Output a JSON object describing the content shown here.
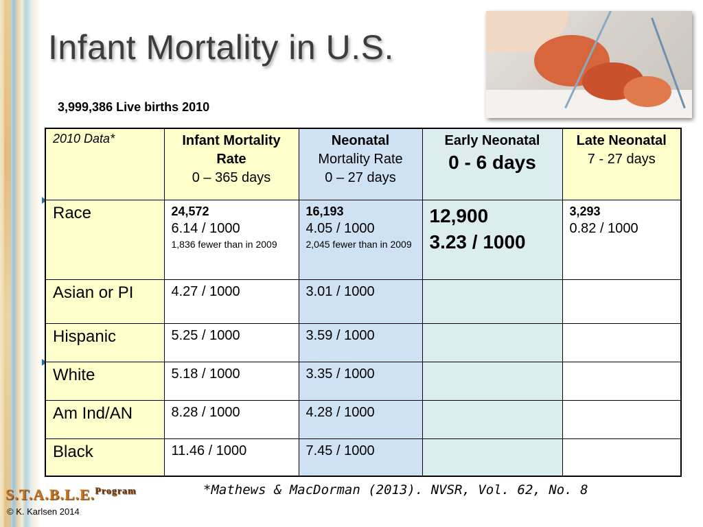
{
  "title": "Infant Mortality in U.S.",
  "subtitle": "3,999,386 Live births 2010",
  "table": {
    "header": {
      "col0": "2010 Data*",
      "col1_bold": "Infant Mortality Rate",
      "col1_range": "0 – 365 days",
      "col2_bold": "Neonatal",
      "col2_rest": "Mortality Rate",
      "col2_range": "0 – 27 days",
      "col3_label": "Early Neonatal",
      "col3_range": "0 - 6 days",
      "col4_label": "Late Neonatal",
      "col4_range": "7 - 27 days"
    },
    "race_row": {
      "label": "Race",
      "infant_count": "24,572",
      "infant_rate": "6.14 / 1000",
      "infant_note": "1,836 fewer than in 2009",
      "neonatal_count": "16,193",
      "neonatal_rate": "4.05 / 1000",
      "neonatal_note": "2,045 fewer than in 2009",
      "early_count": "12,900",
      "early_rate": "3.23 / 1000",
      "late_count": "3,293",
      "late_rate": "0.82 / 1000"
    },
    "rows": [
      {
        "label": "Asian or PI",
        "infant": "4.27 / 1000",
        "neonatal": "3.01 / 1000"
      },
      {
        "label": "Hispanic",
        "infant": "5.25 / 1000",
        "neonatal": "3.59 / 1000"
      },
      {
        "label": "White",
        "infant": "5.18 / 1000",
        "neonatal": "3.35 / 1000"
      },
      {
        "label": "Am Ind/AN",
        "infant": "8.28 / 1000",
        "neonatal": "4.28 / 1000"
      },
      {
        "label": "Black",
        "infant": "11.46 / 1000",
        "neonatal": "7.45 / 1000"
      }
    ]
  },
  "citation": "*Mathews & MacDorman (2013). NVSR, Vol. 62, No. 8",
  "logo": {
    "text": "S.T.A.B.L.E.",
    "suffix": "Program"
  },
  "copyright": "© K. Karlsen 2014",
  "colors": {
    "header_yellow": "#ffffcc",
    "neonatal_blue": "#cfe2f3",
    "early_teal": "#dcedf0",
    "bullet_blue": "#2a6fa8"
  }
}
